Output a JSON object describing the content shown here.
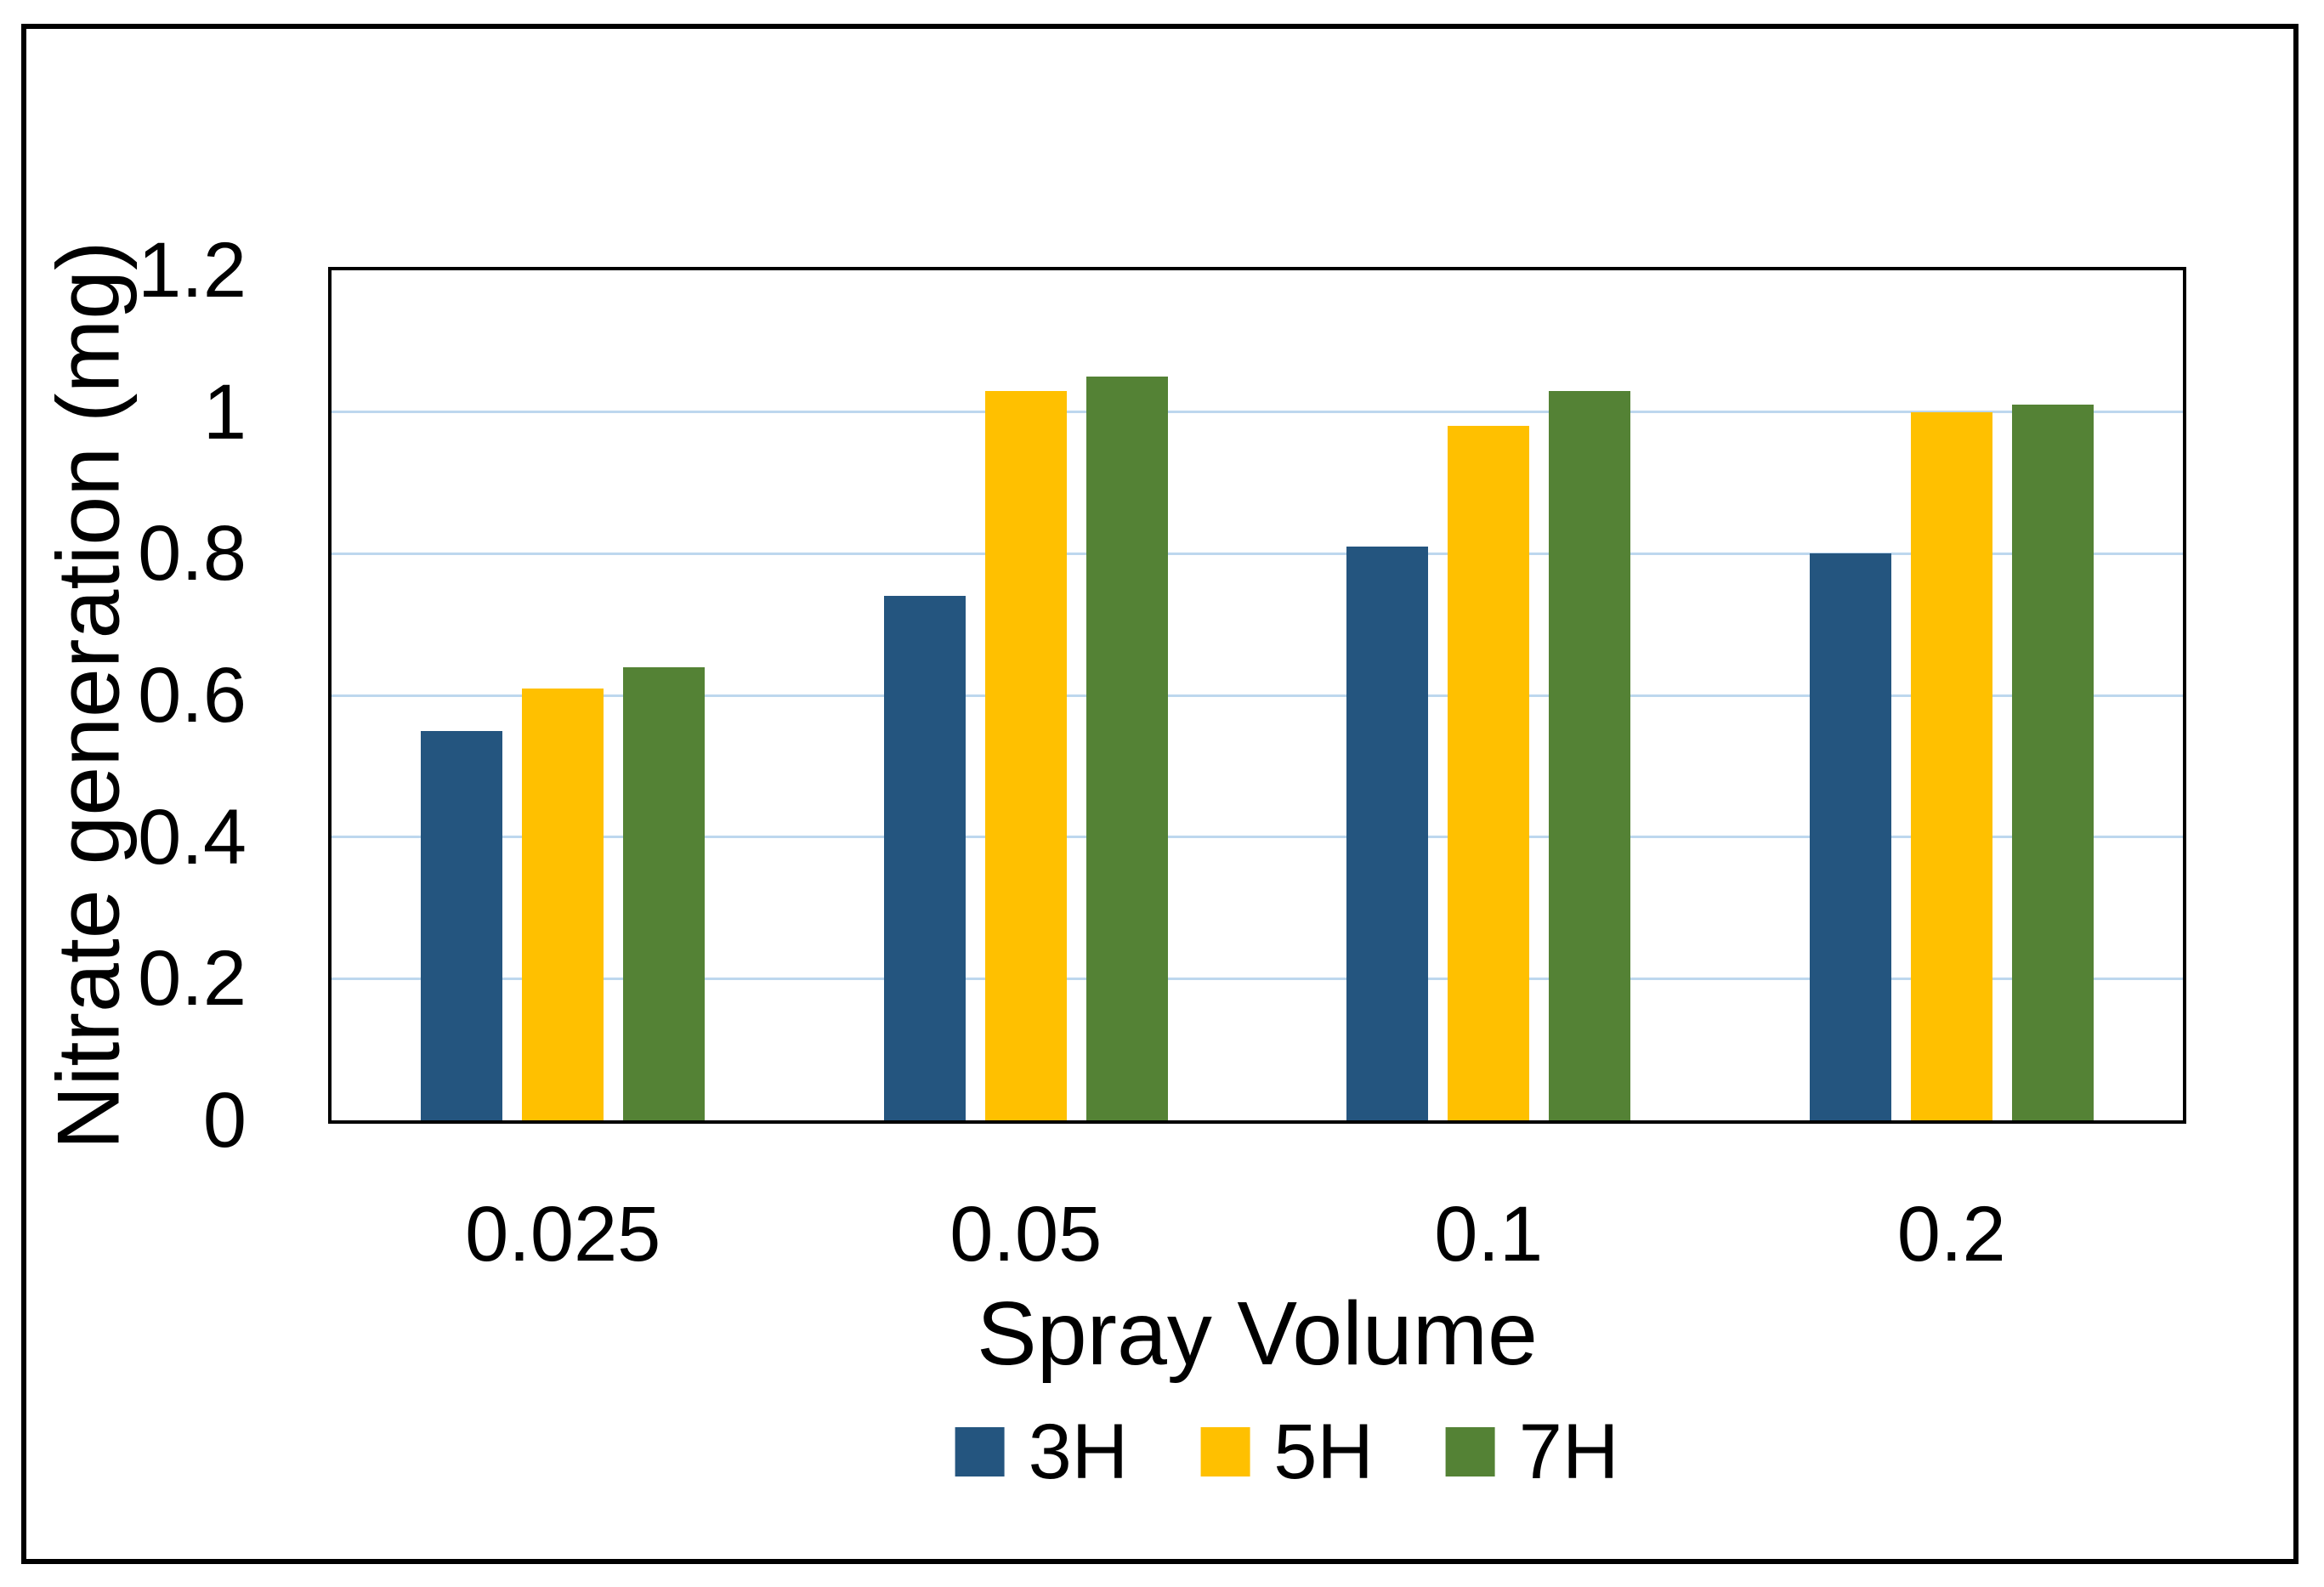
{
  "chart_data": {
    "type": "bar",
    "title": "",
    "categories": [
      "0.025",
      "0.05",
      "0.1",
      "0.2"
    ],
    "series": [
      {
        "name": "3H",
        "color": "#24557F",
        "values": [
          0.55,
          0.74,
          0.81,
          0.8
        ]
      },
      {
        "name": "5H",
        "color": "#FFC000",
        "values": [
          0.61,
          1.03,
          0.98,
          1.0
        ]
      },
      {
        "name": "7H",
        "color": "#548235",
        "values": [
          0.64,
          1.05,
          1.03,
          1.01
        ]
      }
    ],
    "xlabel": "Spray Volume",
    "ylabel": "Nitrate generation (mg)",
    "ylim": [
      0,
      1.2
    ],
    "ytick_step": 0.2,
    "yticks": [
      {
        "value": 0,
        "label": "0"
      },
      {
        "value": 0.2,
        "label": "0.2"
      },
      {
        "value": 0.4,
        "label": "0.4"
      },
      {
        "value": 0.6,
        "label": "0.6"
      },
      {
        "value": 0.8,
        "label": "0.8"
      },
      {
        "value": 1,
        "label": "1"
      },
      {
        "value": 1.2,
        "label": "1.2"
      }
    ],
    "grid": true,
    "gridline_color": "#BDD7EE",
    "axis_color": "#000000",
    "legend_position": "bottom"
  }
}
